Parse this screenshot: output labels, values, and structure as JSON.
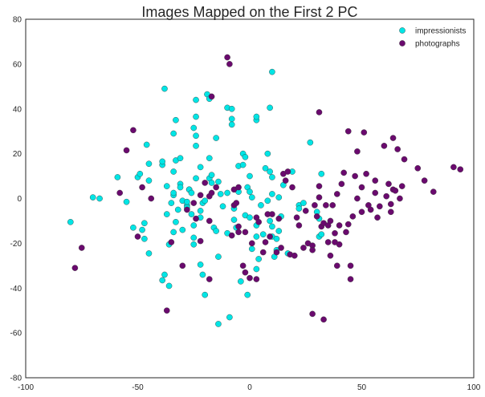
{
  "chart_data": {
    "type": "scatter",
    "title": "Images Mapped on the First 2 PC",
    "xlabel": "",
    "ylabel": "",
    "xlim": [
      -100,
      100
    ],
    "ylim": [
      -80,
      80
    ],
    "x_ticks": [
      -100,
      -50,
      0,
      50,
      100
    ],
    "y_ticks": [
      -80,
      -60,
      -40,
      -20,
      0,
      20,
      40,
      60,
      80
    ],
    "grid": false,
    "legend_position": "top-right",
    "series": [
      {
        "name": "impressionists",
        "color": "#00e5e5",
        "points": [
          [
            -80,
            -10.5
          ],
          [
            -70,
            0.5
          ],
          [
            -67,
            0
          ],
          [
            -59,
            9.5
          ],
          [
            -55,
            -1.5
          ],
          [
            -52,
            -13
          ],
          [
            -50,
            9.5
          ],
          [
            -49,
            11
          ],
          [
            -48,
            -14
          ],
          [
            -47,
            -18
          ],
          [
            -47,
            -11
          ],
          [
            -46,
            24
          ],
          [
            -45,
            8
          ],
          [
            -45,
            15.5
          ],
          [
            -45,
            -24.5
          ],
          [
            -39,
            15
          ],
          [
            -39,
            16.5
          ],
          [
            -39,
            -36.5
          ],
          [
            -38,
            -34
          ],
          [
            -38,
            49
          ],
          [
            -37,
            5.5
          ],
          [
            -37,
            -7
          ],
          [
            -36,
            -20.5
          ],
          [
            -36,
            -39
          ],
          [
            -35,
            -2
          ],
          [
            -34,
            1.5
          ],
          [
            -34,
            2.5
          ],
          [
            -34,
            12
          ],
          [
            -34,
            29
          ],
          [
            -34,
            -15
          ],
          [
            -33,
            35
          ],
          [
            -33,
            17
          ],
          [
            -33,
            -10.5
          ],
          [
            -32,
            -5
          ],
          [
            -31,
            18
          ],
          [
            -31,
            6.5
          ],
          [
            -31,
            5
          ],
          [
            -30,
            -1
          ],
          [
            -30,
            -14
          ],
          [
            -28,
            -3
          ],
          [
            -28,
            -1.5
          ],
          [
            -28,
            -4
          ],
          [
            -27,
            4
          ],
          [
            -27,
            4
          ],
          [
            -26,
            2.5
          ],
          [
            -26,
            -7
          ],
          [
            -25,
            -12
          ],
          [
            -25,
            -17.5
          ],
          [
            -25,
            -20.5
          ],
          [
            -25,
            31.5
          ],
          [
            -24,
            28
          ],
          [
            -24,
            23.5
          ],
          [
            -24,
            9
          ],
          [
            -24,
            36.5
          ],
          [
            -24,
            44
          ],
          [
            -22,
            -5.5
          ],
          [
            -22,
            -8.5
          ],
          [
            -22,
            14
          ],
          [
            -22,
            -29.5
          ],
          [
            -21,
            -2
          ],
          [
            -21,
            -34
          ],
          [
            -20,
            -1
          ],
          [
            -20,
            -43
          ],
          [
            -19,
            46.5
          ],
          [
            -18,
            44.5
          ],
          [
            -18,
            18
          ],
          [
            -18,
            9
          ],
          [
            -17,
            7
          ],
          [
            -17,
            10.5
          ],
          [
            -16,
            -13
          ],
          [
            -15,
            -14.5
          ],
          [
            -15,
            27
          ],
          [
            -14,
            -56
          ],
          [
            -14,
            7.5
          ],
          [
            -14,
            -26
          ],
          [
            -13,
            2
          ],
          [
            -12,
            -3.5
          ],
          [
            -10,
            2.5
          ],
          [
            -10,
            40.5
          ],
          [
            -10,
            -15.5
          ],
          [
            -9,
            -53
          ],
          [
            -8,
            33
          ],
          [
            -8,
            40
          ],
          [
            -8,
            35.5
          ],
          [
            -7,
            -4.5
          ],
          [
            -7,
            -9.5
          ],
          [
            -6,
            -13
          ],
          [
            -5,
            3
          ],
          [
            -5,
            14.5
          ],
          [
            -4,
            -37
          ],
          [
            -3,
            20
          ],
          [
            -3,
            15
          ],
          [
            -2,
            -7.5
          ],
          [
            -2,
            18.5
          ],
          [
            -1,
            5
          ],
          [
            -1,
            -43
          ],
          [
            0,
            10
          ],
          [
            0,
            3
          ],
          [
            0,
            -8.5
          ],
          [
            1,
            -22.5
          ],
          [
            1,
            0.5
          ],
          [
            3,
            -12
          ],
          [
            3,
            -17
          ],
          [
            3,
            35
          ],
          [
            3,
            36.5
          ],
          [
            3,
            -31.5
          ],
          [
            4,
            -27
          ],
          [
            5,
            -3
          ],
          [
            6,
            -16
          ],
          [
            7,
            13.5
          ],
          [
            8,
            -1
          ],
          [
            8,
            20
          ],
          [
            9,
            40.5
          ],
          [
            9,
            12
          ],
          [
            9,
            -10
          ],
          [
            10,
            9.5
          ],
          [
            10,
            -12.5
          ],
          [
            10,
            2
          ],
          [
            10,
            -17
          ],
          [
            10,
            56.5
          ],
          [
            11,
            -26
          ],
          [
            12,
            -18
          ],
          [
            12,
            -23
          ],
          [
            13,
            -14.5
          ],
          [
            13,
            0.5
          ],
          [
            14,
            -8
          ],
          [
            15,
            6
          ],
          [
            17,
            -24.5
          ],
          [
            19,
            12
          ],
          [
            22,
            -3
          ],
          [
            22,
            -4.5
          ],
          [
            24,
            -2
          ],
          [
            27,
            25
          ],
          [
            30,
            -6
          ],
          [
            31,
            -9
          ],
          [
            31,
            -17
          ],
          [
            32,
            -16
          ],
          [
            32,
            11
          ]
        ]
      },
      {
        "name": "photographs",
        "color": "#6a0a6e",
        "points": [
          [
            -78,
            -31
          ],
          [
            -75,
            -22
          ],
          [
            -58,
            2.5
          ],
          [
            -55,
            21.5
          ],
          [
            -52,
            30.5
          ],
          [
            -50,
            -17
          ],
          [
            -48,
            5
          ],
          [
            -44,
            0
          ],
          [
            -37,
            -50
          ],
          [
            -35,
            -19.5
          ],
          [
            -30,
            -30
          ],
          [
            -28,
            -5
          ],
          [
            -25,
            -2
          ],
          [
            -24,
            -9
          ],
          [
            -22,
            1.5
          ],
          [
            -22,
            -19
          ],
          [
            -20,
            7
          ],
          [
            -18,
            -36
          ],
          [
            -18,
            1
          ],
          [
            -18,
            -10
          ],
          [
            -17,
            2.5
          ],
          [
            -17,
            45.5
          ],
          [
            -15,
            5
          ],
          [
            -10,
            63
          ],
          [
            -9,
            60
          ],
          [
            -8,
            -16.5
          ],
          [
            -7,
            4
          ],
          [
            -7,
            -3
          ],
          [
            -6,
            -2
          ],
          [
            -5,
            -12.5
          ],
          [
            -5,
            5
          ],
          [
            -5,
            -15
          ],
          [
            -3,
            -30
          ],
          [
            -2,
            -33
          ],
          [
            -2,
            -15
          ],
          [
            0,
            -35.5
          ],
          [
            1,
            -20
          ],
          [
            3,
            -36
          ],
          [
            3,
            -8.5
          ],
          [
            4,
            -10.5
          ],
          [
            6,
            -24
          ],
          [
            7,
            -19.5
          ],
          [
            8,
            -7
          ],
          [
            9,
            -17
          ],
          [
            10,
            -7
          ],
          [
            12,
            -24
          ],
          [
            13,
            -9
          ],
          [
            14,
            -22
          ],
          [
            15,
            11
          ],
          [
            16,
            8
          ],
          [
            17,
            12
          ],
          [
            18,
            -25
          ],
          [
            19,
            5
          ],
          [
            20,
            -25.5
          ],
          [
            21,
            -8.5
          ],
          [
            22,
            -12
          ],
          [
            24,
            -22
          ],
          [
            25,
            -5.5
          ],
          [
            26,
            -20
          ],
          [
            28,
            -51.5
          ],
          [
            28,
            -21
          ],
          [
            28,
            -23
          ],
          [
            29,
            -3
          ],
          [
            30,
            -8
          ],
          [
            31,
            38.5
          ],
          [
            31,
            5.5
          ],
          [
            31,
            0.5
          ],
          [
            32,
            -12.5
          ],
          [
            33,
            -54
          ],
          [
            33,
            -11
          ],
          [
            34,
            -3
          ],
          [
            35,
            -12
          ],
          [
            35,
            -19.5
          ],
          [
            36,
            -25.5
          ],
          [
            36,
            -10
          ],
          [
            37,
            -3
          ],
          [
            38,
            -15.5
          ],
          [
            38,
            -19.5
          ],
          [
            39,
            -30
          ],
          [
            39,
            2
          ],
          [
            40,
            -12
          ],
          [
            40,
            -20.5
          ],
          [
            41,
            6.5
          ],
          [
            42,
            11.5
          ],
          [
            43,
            -15
          ],
          [
            44,
            -11.5
          ],
          [
            44,
            30
          ],
          [
            45,
            -30
          ],
          [
            45,
            -36
          ],
          [
            46,
            -8
          ],
          [
            47,
            10
          ],
          [
            48,
            0
          ],
          [
            48,
            21
          ],
          [
            50,
            -6
          ],
          [
            50,
            5
          ],
          [
            51,
            29.5
          ],
          [
            52,
            11
          ],
          [
            53,
            -3
          ],
          [
            54,
            -5
          ],
          [
            56,
            2.5
          ],
          [
            56,
            8
          ],
          [
            57,
            -8.5
          ],
          [
            58,
            -3.5
          ],
          [
            60,
            23.5
          ],
          [
            61,
            1
          ],
          [
            62,
            6.5
          ],
          [
            63,
            -2.5
          ],
          [
            63,
            -6
          ],
          [
            64,
            27
          ],
          [
            64,
            4
          ],
          [
            65,
            3.5
          ],
          [
            66,
            22
          ],
          [
            67,
            0
          ],
          [
            68,
            5.5
          ],
          [
            69,
            17.5
          ],
          [
            75,
            13.5
          ],
          [
            78,
            8
          ],
          [
            82,
            3
          ],
          [
            91,
            14
          ],
          [
            94,
            13
          ]
        ]
      }
    ]
  }
}
